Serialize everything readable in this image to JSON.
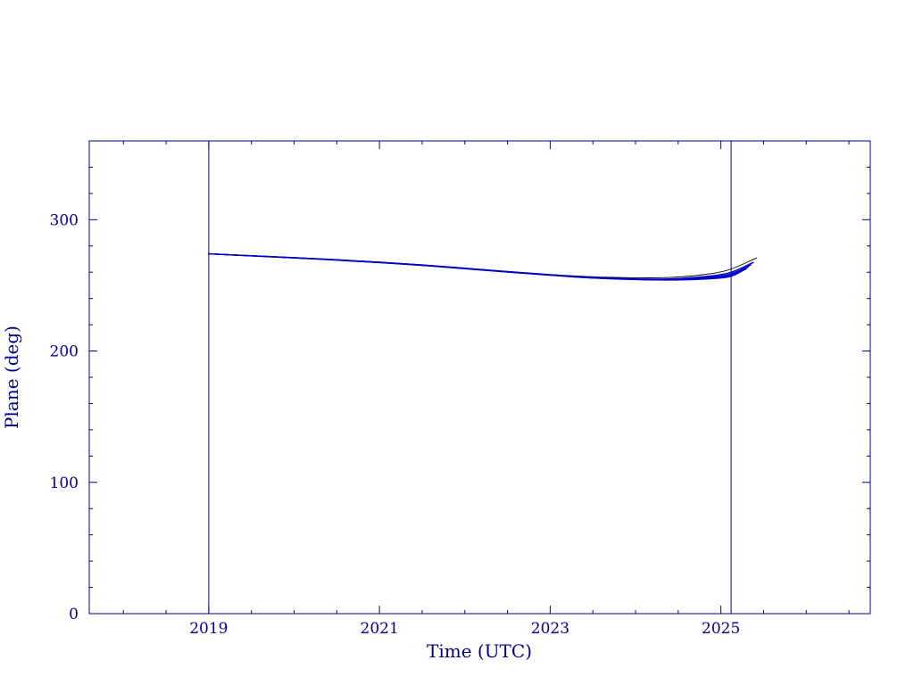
{
  "chart_data": {
    "type": "line",
    "title": "",
    "xlabel": "Time (UTC)",
    "ylabel": "Plane (deg)",
    "xlim": [
      2017.6,
      2026.75
    ],
    "ylim": [
      0,
      360
    ],
    "xticks": [
      2019,
      2021,
      2023,
      2025
    ],
    "yticks": [
      0,
      100,
      200,
      300
    ],
    "x_minor_step": 0.5,
    "y_minor_step": 20,
    "grid": false,
    "legend": "none",
    "axis_color": "#00008b",
    "text_color": "#00008b",
    "vline_color": "#00008b",
    "vlines": [
      2019,
      2025.12
    ],
    "series": [
      {
        "name": "trajectory-upper",
        "color": "#000000",
        "width": 0.9,
        "points": [
          [
            2019,
            274
          ],
          [
            2019.5,
            272.6
          ],
          [
            2020,
            271.2
          ],
          [
            2020.5,
            269.6
          ],
          [
            2021,
            267.8
          ],
          [
            2021.5,
            265.7
          ],
          [
            2022,
            263.2
          ],
          [
            2022.5,
            260.7
          ],
          [
            2023,
            258.3
          ],
          [
            2023.5,
            256.5
          ],
          [
            2024,
            255.8
          ],
          [
            2024.4,
            256.0
          ],
          [
            2024.8,
            258.2
          ],
          [
            2025.1,
            262.0
          ],
          [
            2025.42,
            271.0
          ]
        ]
      },
      {
        "name": "trajectory-2",
        "color": "#0000cd",
        "width": 1.4,
        "points": [
          [
            2019,
            274
          ],
          [
            2019.5,
            272.6
          ],
          [
            2020,
            271.1
          ],
          [
            2020.5,
            269.5
          ],
          [
            2021,
            267.6
          ],
          [
            2021.5,
            265.5
          ],
          [
            2022,
            263.0
          ],
          [
            2022.5,
            260.4
          ],
          [
            2023,
            258.0
          ],
          [
            2023.5,
            256.0
          ],
          [
            2024,
            254.9
          ],
          [
            2024.4,
            254.9
          ],
          [
            2024.8,
            256.6
          ],
          [
            2025.1,
            259.6
          ],
          [
            2025.38,
            267.5
          ]
        ]
      },
      {
        "name": "trajectory-3",
        "color": "#0000cd",
        "width": 1.4,
        "points": [
          [
            2019,
            274
          ],
          [
            2019.5,
            272.5
          ],
          [
            2020,
            271.0
          ],
          [
            2020.5,
            269.4
          ],
          [
            2021,
            267.5
          ],
          [
            2021.5,
            265.4
          ],
          [
            2022,
            262.9
          ],
          [
            2022.5,
            260.3
          ],
          [
            2023,
            257.9
          ],
          [
            2023.5,
            255.8
          ],
          [
            2024,
            254.7
          ],
          [
            2024.4,
            254.6
          ],
          [
            2024.8,
            255.9
          ],
          [
            2025.1,
            258.4
          ],
          [
            2025.35,
            265.5
          ]
        ]
      },
      {
        "name": "trajectory-4",
        "color": "#0000cd",
        "width": 1.4,
        "points": [
          [
            2019,
            274
          ],
          [
            2019.5,
            272.5
          ],
          [
            2020,
            271.0
          ],
          [
            2020.5,
            269.3
          ],
          [
            2021,
            267.4
          ],
          [
            2021.5,
            265.3
          ],
          [
            2022,
            262.8
          ],
          [
            2022.5,
            260.2
          ],
          [
            2023,
            257.8
          ],
          [
            2023.5,
            255.7
          ],
          [
            2024,
            254.5
          ],
          [
            2024.4,
            254.3
          ],
          [
            2024.8,
            255.3
          ],
          [
            2025.1,
            257.4
          ],
          [
            2025.32,
            264.0
          ]
        ]
      },
      {
        "name": "trajectory-lower",
        "color": "#0000cd",
        "width": 1.4,
        "points": [
          [
            2019,
            274
          ],
          [
            2019.5,
            272.4
          ],
          [
            2020,
            270.9
          ],
          [
            2020.5,
            269.2
          ],
          [
            2021,
            267.3
          ],
          [
            2021.5,
            265.2
          ],
          [
            2022,
            262.7
          ],
          [
            2022.5,
            260.1
          ],
          [
            2023,
            257.7
          ],
          [
            2023.5,
            255.6
          ],
          [
            2024,
            254.4
          ],
          [
            2024.4,
            254.1
          ],
          [
            2024.8,
            254.8
          ],
          [
            2025.1,
            256.6
          ],
          [
            2025.3,
            262.8
          ]
        ]
      }
    ]
  }
}
